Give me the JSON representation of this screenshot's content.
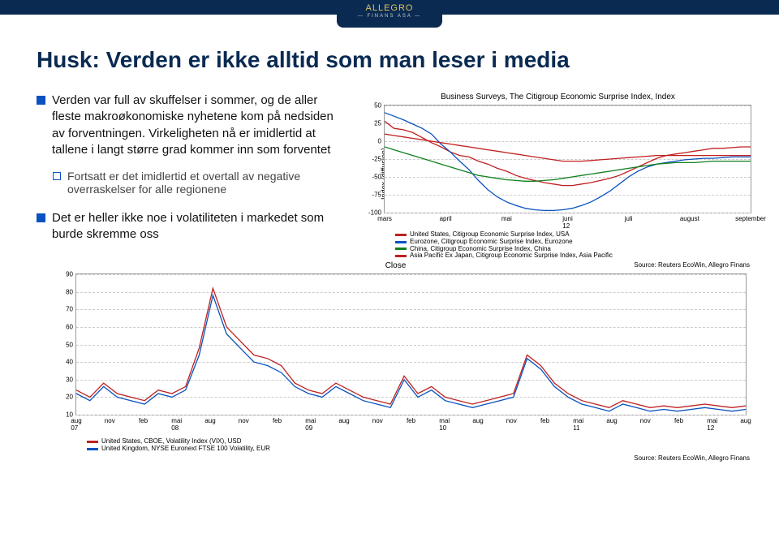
{
  "logo": {
    "main": "ALLEGRO",
    "sub": "— FINANS ASA —"
  },
  "title": "Husk: Verden er ikke alltid som man leser i media",
  "bullets": [
    "Verden var full av skuffelser i sommer, og de aller fleste makroøkonomiske nyhetene kom på nedsiden av forventningen. Virkeligheten nå er imidlertid at tallene i langt større grad kommer inn som forventet",
    "Det er heller ikke noe i volatiliteten i markedet som burde skremme oss"
  ],
  "subbullet": "Fortsatt er det imidlertid et overtall av negative overraskelser for alle regionene",
  "chart1": {
    "title": "Business Surveys, The Citigroup Economic Surprise Index, Index",
    "ylabel": "Index (diffusion)",
    "ylim": [
      -100,
      50
    ],
    "yticks": [
      50,
      25,
      0,
      -25,
      -50,
      -75,
      -100
    ],
    "xticks": [
      "mars",
      "april",
      "mai",
      "juni",
      "juli",
      "august",
      "september"
    ],
    "xsublabel": "12",
    "grid_color": "#cccccc",
    "series": [
      {
        "name": "United States, Citigroup Economic Surprise Index, USA",
        "color": "#c02020",
        "pts": [
          28,
          18,
          16,
          12,
          5,
          -2,
          -8,
          -15,
          -20,
          -22,
          -28,
          -32,
          -38,
          -42,
          -48,
          -52,
          -55,
          -58,
          -60,
          -62,
          -62,
          -60,
          -58,
          -55,
          -52,
          -48,
          -42,
          -36,
          -30,
          -24,
          -20,
          -18,
          -16,
          -14,
          -12,
          -10,
          -10,
          -9,
          -8,
          -8
        ]
      },
      {
        "name": "Eurozone, Citigroup Economic Surprise Index, Eurozone",
        "color": "#0a52c0",
        "pts": [
          40,
          35,
          30,
          24,
          18,
          10,
          -4,
          -15,
          -28,
          -40,
          -55,
          -68,
          -78,
          -85,
          -90,
          -94,
          -96,
          -97,
          -97,
          -96,
          -94,
          -90,
          -85,
          -78,
          -70,
          -60,
          -50,
          -42,
          -36,
          -32,
          -30,
          -28,
          -26,
          -25,
          -24,
          -24,
          -23,
          -22,
          -22,
          -22
        ]
      },
      {
        "name": "China, Citigroup Economic Surprise Index, China",
        "color": "#108020",
        "pts": [
          -8,
          -12,
          -16,
          -20,
          -24,
          -28,
          -32,
          -36,
          -40,
          -44,
          -48,
          -50,
          -52,
          -54,
          -55,
          -56,
          -56,
          -55,
          -54,
          -52,
          -50,
          -48,
          -46,
          -44,
          -42,
          -40,
          -38,
          -36,
          -34,
          -32,
          -31,
          -30,
          -30,
          -30,
          -29,
          -28,
          -28,
          -28,
          -28,
          -28
        ]
      },
      {
        "name": "Asia Pacific Ex Japan, Citigroup Economic Surprise Index, Asia Pacific",
        "color": "#c02020",
        "pts": [
          10,
          8,
          6,
          4,
          2,
          0,
          -2,
          -4,
          -6,
          -8,
          -10,
          -12,
          -14,
          -16,
          -18,
          -20,
          -22,
          -24,
          -26,
          -28,
          -28,
          -28,
          -27,
          -26,
          -25,
          -24,
          -23,
          -22,
          -21,
          -20,
          -20,
          -20,
          -20,
          -20,
          -20,
          -20,
          -20,
          -20,
          -20,
          -20
        ]
      }
    ],
    "source": "Source: Reuters EcoWin, Allegro Finans"
  },
  "chart2": {
    "title": "Close",
    "ylim": [
      10,
      90
    ],
    "yticks": [
      90,
      80,
      70,
      60,
      50,
      40,
      30,
      20,
      10
    ],
    "xticks_top": [
      "aug",
      "nov",
      "feb",
      "mai",
      "aug",
      "nov",
      "feb",
      "mai",
      "aug",
      "nov",
      "feb",
      "mai",
      "aug",
      "nov",
      "feb",
      "mai",
      "aug",
      "nov",
      "feb",
      "mai",
      "aug"
    ],
    "xticks_year": {
      "0": "07",
      "3": "08",
      "7": "09",
      "11": "10",
      "15": "11",
      "19": "12"
    },
    "grid_color": "#cccccc",
    "series": [
      {
        "name": "United States, CBOE, Volatility Index (VIX), USD",
        "color": "#c02020",
        "pts": [
          24,
          20,
          28,
          22,
          20,
          18,
          24,
          22,
          26,
          48,
          82,
          60,
          52,
          44,
          42,
          38,
          28,
          24,
          22,
          28,
          24,
          20,
          18,
          16,
          32,
          22,
          26,
          20,
          18,
          16,
          18,
          20,
          22,
          44,
          38,
          28,
          22,
          18,
          16,
          14,
          18,
          16,
          14,
          15,
          14,
          15,
          16,
          15,
          14,
          15
        ]
      },
      {
        "name": "United Kingdom, NYSE Euronext FTSE 100 Volatility, EUR",
        "color": "#0a52c0",
        "pts": [
          22,
          18,
          26,
          20,
          18,
          16,
          22,
          20,
          24,
          44,
          78,
          56,
          48,
          40,
          38,
          34,
          26,
          22,
          20,
          26,
          22,
          18,
          16,
          14,
          30,
          20,
          24,
          18,
          16,
          14,
          16,
          18,
          20,
          42,
          36,
          26,
          20,
          16,
          14,
          12,
          16,
          14,
          12,
          13,
          12,
          13,
          14,
          13,
          12,
          13
        ]
      }
    ],
    "source": "Source: Reuters EcoWin, Allegro Finans"
  }
}
